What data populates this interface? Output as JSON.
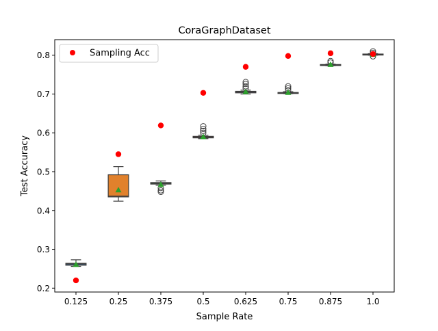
{
  "chart_data": {
    "type": "box",
    "title": "CoraGraphDataset",
    "xlabel": "Sample Rate",
    "ylabel": "Test Accuracy",
    "categories": [
      "0.125",
      "0.25",
      "0.375",
      "0.5",
      "0.625",
      "0.75",
      "0.875",
      "1.0"
    ],
    "ylim": [
      0.19,
      0.84
    ],
    "yticks": [
      0.2,
      0.3,
      0.4,
      0.5,
      0.6,
      0.7,
      0.8
    ],
    "ytick_labels": [
      "0.2",
      "0.3",
      "0.4",
      "0.5",
      "0.6",
      "0.7",
      "0.8"
    ],
    "legend": {
      "placement": "top-left",
      "entries": [
        "Sampling Acc"
      ]
    },
    "colors": {
      "boxes": [
        "#3a75a8",
        "#e1812c",
        "#3a923a",
        "#c03d3e",
        "#9372b2",
        "#845b53",
        "#d684bd",
        "#7f7f7f"
      ],
      "sampling_acc": "#ff0000",
      "mean_marker": "#2ca02c",
      "edge": "#3d3d3d"
    },
    "boxes": [
      {
        "whislo": 0.256,
        "q1": 0.259,
        "median": 0.262,
        "q3": 0.264,
        "whishi": 0.273,
        "mean": 0.261,
        "fliers": []
      },
      {
        "whislo": 0.424,
        "q1": 0.435,
        "median": 0.437,
        "q3": 0.492,
        "whishi": 0.513,
        "mean": 0.453,
        "fliers": []
      },
      {
        "whislo": 0.465,
        "q1": 0.468,
        "median": 0.47,
        "q3": 0.472,
        "whishi": 0.476,
        "mean": 0.467,
        "fliers": [
          0.458,
          0.452,
          0.448
        ]
      },
      {
        "whislo": 0.585,
        "q1": 0.587,
        "median": 0.589,
        "q3": 0.591,
        "whishi": 0.594,
        "mean": 0.59,
        "fliers": [
          0.6,
          0.605,
          0.61,
          0.617
        ]
      },
      {
        "whislo": 0.7,
        "q1": 0.703,
        "median": 0.705,
        "q3": 0.707,
        "whishi": 0.71,
        "mean": 0.706,
        "fliers": [
          0.715,
          0.72,
          0.726,
          0.731
        ]
      },
      {
        "whislo": 0.701,
        "q1": 0.702,
        "median": 0.703,
        "q3": 0.704,
        "whishi": 0.706,
        "mean": 0.704,
        "fliers": [
          0.71,
          0.715,
          0.72
        ]
      },
      {
        "whislo": 0.773,
        "q1": 0.774,
        "median": 0.775,
        "q3": 0.776,
        "whishi": 0.777,
        "mean": 0.776,
        "fliers": [
          0.781,
          0.785
        ]
      },
      {
        "whislo": 0.8,
        "q1": 0.801,
        "median": 0.802,
        "q3": 0.803,
        "whishi": 0.804,
        "mean": 0.802,
        "fliers": [
          0.797,
          0.806,
          0.81
        ]
      }
    ],
    "sampling_acc": [
      0.22,
      0.545,
      0.619,
      0.703,
      0.77,
      0.798,
      0.805,
      0.803
    ]
  }
}
